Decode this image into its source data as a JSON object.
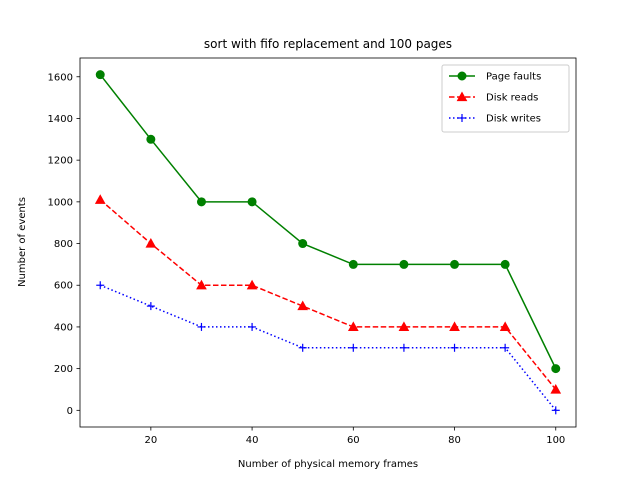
{
  "chart_data": {
    "type": "line",
    "title": "sort with fifo replacement and 100 pages",
    "xlabel": "Number of physical memory frames",
    "ylabel": "Number of events",
    "x": [
      10,
      20,
      30,
      40,
      50,
      60,
      70,
      80,
      90,
      100
    ],
    "xlim": [
      6,
      104
    ],
    "ylim": [
      -80,
      1690
    ],
    "xticks": [
      20,
      40,
      60,
      80,
      100
    ],
    "yticks": [
      0,
      200,
      400,
      600,
      800,
      1000,
      1200,
      1400,
      1600
    ],
    "grid": false,
    "legend_position": "top-right",
    "series": [
      {
        "name": "Page faults",
        "color": "#008000",
        "style": "solid",
        "marker": "circle",
        "values": [
          1610,
          1300,
          1000,
          1000,
          800,
          700,
          700,
          700,
          700,
          200
        ]
      },
      {
        "name": "Disk reads",
        "color": "#ff0000",
        "style": "dashed",
        "marker": "triangle",
        "values": [
          1010,
          800,
          600,
          600,
          500,
          400,
          400,
          400,
          400,
          100
        ]
      },
      {
        "name": "Disk writes",
        "color": "#0000ff",
        "style": "dotted",
        "marker": "plus",
        "values": [
          600,
          500,
          400,
          400,
          300,
          300,
          300,
          300,
          300,
          0
        ]
      }
    ]
  }
}
